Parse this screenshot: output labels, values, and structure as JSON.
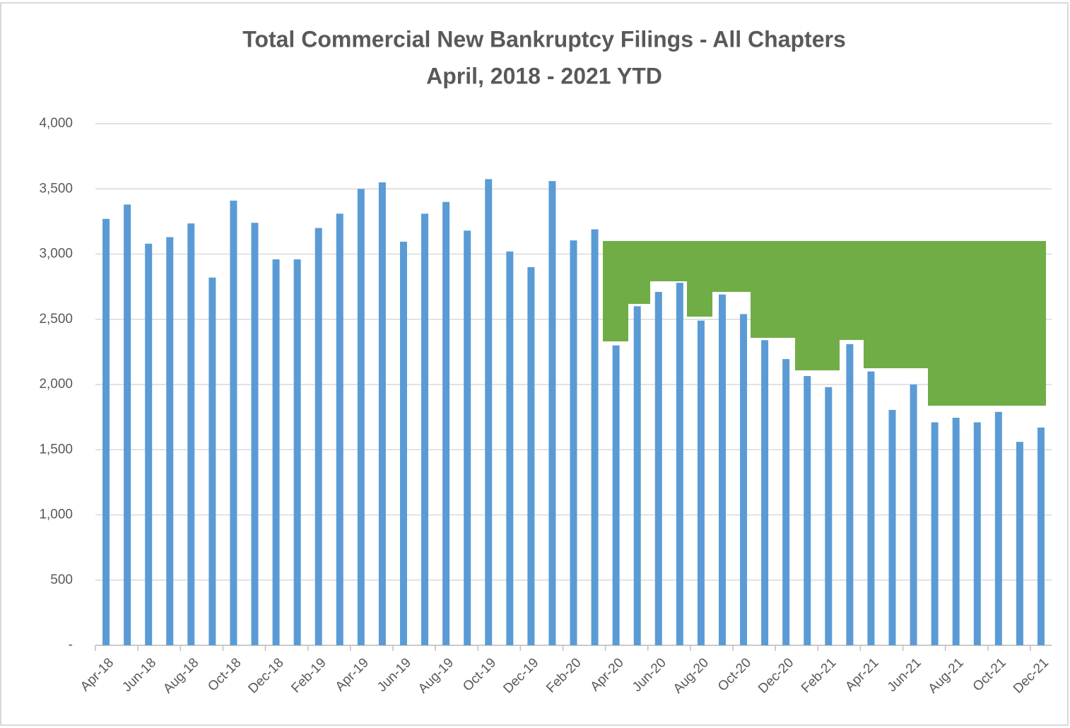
{
  "chart_data": {
    "type": "bar",
    "title": "Total Commercial New Bankruptcy Filings - All Chapters",
    "subtitle": "April, 2018 - 2021 YTD",
    "categories": [
      "Apr-18",
      null,
      "Jun-18",
      null,
      "Aug-18",
      null,
      "Oct-18",
      null,
      "Dec-18",
      null,
      "Feb-19",
      null,
      "Apr-19",
      null,
      "Jun-19",
      null,
      "Aug-19",
      null,
      "Oct-19",
      null,
      "Dec-19",
      null,
      "Feb-20",
      null,
      "Apr-20",
      null,
      "Jun-20",
      null,
      "Aug-20",
      null,
      "Oct-20",
      null,
      "Dec-20",
      null,
      "Feb-21",
      null,
      "Apr-21",
      null,
      "Jun-21",
      null,
      "Aug-21",
      null,
      "Oct-21",
      null,
      "Dec-21"
    ],
    "values": [
      3270,
      3380,
      3080,
      3130,
      3235,
      2820,
      3410,
      3240,
      2960,
      2960,
      3200,
      3310,
      3500,
      3550,
      3095,
      3310,
      3400,
      3180,
      3575,
      3020,
      2900,
      3560,
      3105,
      3190,
      2300,
      2600,
      2710,
      2780,
      2490,
      2690,
      2540,
      2340,
      2195,
      2065,
      1980,
      2310,
      2100,
      1805,
      2000,
      1710,
      1745,
      1710,
      1790,
      1560,
      1670
    ],
    "color": "#5b9bd5",
    "ylim": [
      0,
      4000
    ],
    "yticks": [
      {
        "value": 0,
        "label": "-"
      },
      500,
      {
        "value": 1000,
        "label": "1,000"
      },
      {
        "value": 1500,
        "label": "1,500"
      },
      {
        "value": 2000,
        "label": "2,000"
      },
      {
        "value": 2500,
        "label": "2,500"
      },
      {
        "value": 3000,
        "label": "3,000"
      },
      {
        "value": 3500,
        "label": "3,500"
      },
      {
        "value": 4000,
        "label": "4,000"
      }
    ],
    "grid": true
  }
}
